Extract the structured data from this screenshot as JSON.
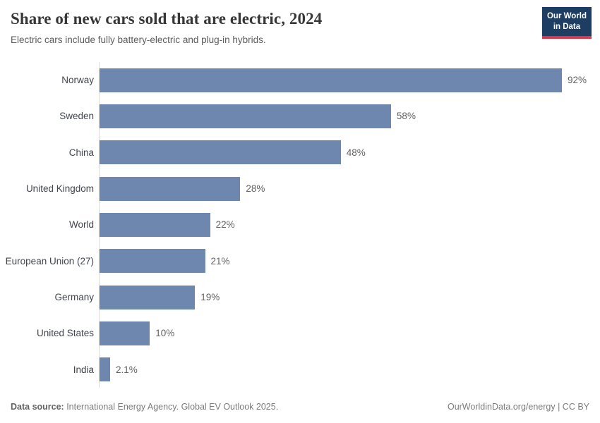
{
  "header": {
    "title": "Share of new cars sold that are electric, 2024",
    "subtitle": "Electric cars include fully battery-electric and plug-in hybrids.",
    "logo": {
      "line1": "Our World",
      "line2": "in Data"
    }
  },
  "chart_data": {
    "type": "bar",
    "orientation": "horizontal",
    "title": "Share of new cars sold that are electric, 2024",
    "categories": [
      "Norway",
      "Sweden",
      "China",
      "United Kingdom",
      "World",
      "European Union (27)",
      "Germany",
      "United States",
      "India"
    ],
    "values": [
      92,
      58,
      48,
      28,
      22,
      21,
      19,
      10,
      2.1
    ],
    "value_labels": [
      "92%",
      "58%",
      "48%",
      "28%",
      "22%",
      "21%",
      "19%",
      "10%",
      "2.1%"
    ],
    "xlabel": "",
    "ylabel": "",
    "xmax": 92,
    "grid": false,
    "legend": false,
    "bar_color": "#6e87ae"
  },
  "footer": {
    "source_label": "Data source:",
    "source_text": " International Energy Agency. Global EV Outlook 2025.",
    "link_text": "OurWorldinData.org/energy",
    "separator": " | ",
    "license": "CC BY"
  },
  "colors": {
    "bar": "#6e87ae",
    "logo_background": "#1d3d63",
    "logo_accent": "#dc354a",
    "axis_line": "#dcdcdc"
  }
}
